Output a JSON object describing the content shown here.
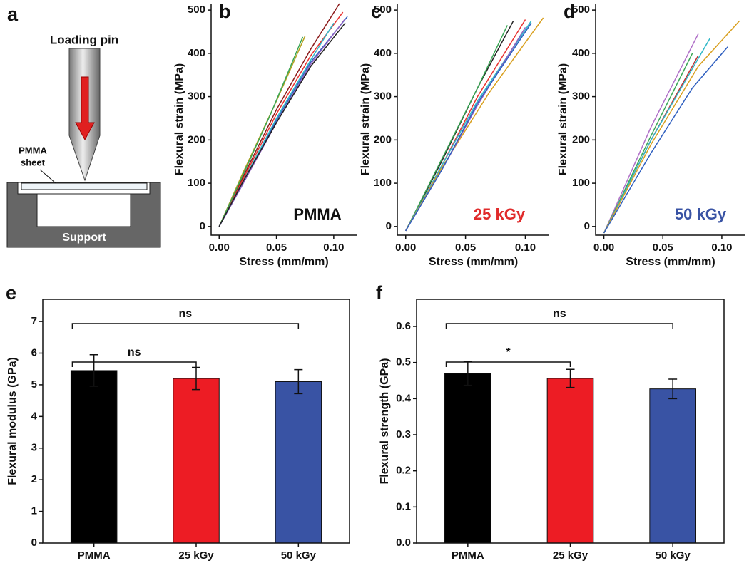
{
  "diagram": {
    "label": "a",
    "pin": "Loading pin",
    "sheet": [
      "PMMA",
      "sheet"
    ],
    "support": "Support"
  },
  "chart_data": [
    {
      "type": "line",
      "label": "b",
      "annotation": "PMMA",
      "annotation_color": "#111111",
      "x_label": "Stress (mm/mm)",
      "y_label": "Flexural strain (MPa)",
      "xlim": [
        -0.007,
        0.12
      ],
      "xticks": [
        {
          "value": 0,
          "label": "0.00"
        },
        0.05,
        {
          "value": 0.1,
          "label": "0.10"
        }
      ],
      "ylim": [
        -20,
        515
      ],
      "yticks": [
        0,
        100,
        200,
        300,
        400,
        500
      ],
      "series": [
        {
          "color": "#8b1a1a",
          "x": [
            0,
            0.02,
            0.05,
            0.08,
            0.105
          ],
          "values": [
            0,
            110,
            270,
            410,
            515
          ]
        },
        {
          "color": "#e8312f",
          "x": [
            0,
            0.02,
            0.05,
            0.08,
            0.108
          ],
          "values": [
            0,
            105,
            260,
            395,
            495
          ]
        },
        {
          "color": "#b5a020",
          "x": [
            0,
            0.02,
            0.05,
            0.075
          ],
          "values": [
            0,
            120,
            290,
            440
          ]
        },
        {
          "color": "#3aa655",
          "x": [
            0,
            0.02,
            0.045,
            0.073
          ],
          "values": [
            0,
            115,
            260,
            438
          ]
        },
        {
          "color": "#30b8c8",
          "x": [
            0,
            0.02,
            0.05,
            0.08,
            0.1
          ],
          "values": [
            0,
            100,
            250,
            385,
            470
          ]
        },
        {
          "color": "#3060c0",
          "x": [
            0,
            0.02,
            0.05,
            0.08,
            0.112
          ],
          "values": [
            0,
            95,
            245,
            380,
            485
          ]
        },
        {
          "color": "#9060c0",
          "x": [
            0,
            0.02,
            0.05,
            0.08,
            0.11
          ],
          "values": [
            0,
            95,
            240,
            375,
            480
          ]
        },
        {
          "color": "#222222",
          "x": [
            0,
            0.02,
            0.05,
            0.08,
            0.11
          ],
          "values": [
            0,
            100,
            240,
            370,
            470
          ]
        }
      ]
    },
    {
      "type": "line",
      "label": "c",
      "annotation": "25 kGy",
      "annotation_color": "#e02b2b",
      "x_label": "Stress (mm/mm)",
      "y_label": "Flexural strain (MPa)",
      "xlim": [
        -0.007,
        0.12
      ],
      "xticks": [
        {
          "value": 0,
          "label": "0.00"
        },
        0.05,
        {
          "value": 0.1,
          "label": "0.10"
        }
      ],
      "ylim": [
        -20,
        515
      ],
      "yticks": [
        0,
        100,
        200,
        300,
        400,
        500
      ],
      "series": [
        {
          "color": "#222222",
          "x": [
            0,
            0.03,
            0.06,
            0.09
          ],
          "values": [
            -10,
            150,
            320,
            475
          ]
        },
        {
          "color": "#3aa655",
          "x": [
            0,
            0.03,
            0.06,
            0.085
          ],
          "values": [
            -10,
            155,
            320,
            465
          ]
        },
        {
          "color": "#e8312f",
          "x": [
            0,
            0.03,
            0.06,
            0.1
          ],
          "values": [
            -10,
            140,
            300,
            478
          ]
        },
        {
          "color": "#30b8c8",
          "x": [
            0,
            0.03,
            0.06,
            0.105
          ],
          "values": [
            -10,
            140,
            290,
            475
          ]
        },
        {
          "color": "#d9a020",
          "x": [
            0,
            0.03,
            0.07,
            0.115
          ],
          "values": [
            -10,
            135,
            310,
            482
          ]
        },
        {
          "color": "#9060c0",
          "x": [
            0,
            0.03,
            0.06,
            0.1
          ],
          "values": [
            -10,
            130,
            280,
            460
          ]
        },
        {
          "color": "#3060c0",
          "x": [
            0,
            0.03,
            0.06,
            0.105
          ],
          "values": [
            -10,
            130,
            285,
            470
          ]
        }
      ]
    },
    {
      "type": "line",
      "label": "d",
      "annotation": "50 kGy",
      "annotation_color": "#3953a4",
      "x_label": "Stress (mm/mm)",
      "y_label": "Flexural strain (MPa)",
      "xlim": [
        -0.007,
        0.12
      ],
      "xticks": [
        {
          "value": 0,
          "label": "0.00"
        },
        0.05,
        {
          "value": 0.1,
          "label": "0.10"
        }
      ],
      "ylim": [
        -20,
        515
      ],
      "yticks": [
        0,
        100,
        200,
        300,
        400,
        500
      ],
      "series": [
        {
          "color": "#b070c8",
          "x": [
            0,
            0.04,
            0.08
          ],
          "values": [
            -15,
            230,
            445
          ]
        },
        {
          "color": "#3aa655",
          "x": [
            0,
            0.04,
            0.075
          ],
          "values": [
            -15,
            210,
            400
          ]
        },
        {
          "color": "#c03030",
          "x": [
            0,
            0.04,
            0.08
          ],
          "values": [
            -15,
            200,
            395
          ]
        },
        {
          "color": "#30b8c8",
          "x": [
            0,
            0.04,
            0.09
          ],
          "values": [
            -15,
            200,
            435
          ]
        },
        {
          "color": "#d9a020",
          "x": [
            0,
            0.04,
            0.08,
            0.115
          ],
          "values": [
            -15,
            190,
            370,
            475
          ]
        },
        {
          "color": "#3060c0",
          "x": [
            0,
            0.04,
            0.075,
            0.105
          ],
          "values": [
            -15,
            170,
            320,
            415
          ]
        }
      ]
    },
    {
      "type": "bar",
      "label": "e",
      "y_label": "Flexural modulus (GPa)",
      "categories": [
        "PMMA",
        "25 kGy",
        "50 kGy"
      ],
      "values": [
        5.45,
        5.2,
        5.1
      ],
      "errors": [
        0.5,
        0.35,
        0.38
      ],
      "colors": [
        "#000000",
        "#ed1c24",
        "#3953a4"
      ],
      "ylim": [
        0,
        7.7
      ],
      "yticks": [
        0,
        1,
        2,
        3,
        4,
        5,
        6,
        7
      ],
      "annotations": [
        "ns",
        "ns"
      ]
    },
    {
      "type": "bar",
      "label": "f",
      "y_label": "Flexural strength (GPa)",
      "categories": [
        "PMMA",
        "25 kGy",
        "50 kGy"
      ],
      "values": [
        0.47,
        0.456,
        0.427
      ],
      "errors": [
        0.033,
        0.025,
        0.027
      ],
      "colors": [
        "#000000",
        "#ed1c24",
        "#3953a4"
      ],
      "ylim": [
        0,
        0.675
      ],
      "yticks": [
        {
          "value": 0,
          "label": "0.0"
        },
        0.1,
        0.2,
        0.3,
        0.4,
        0.5,
        0.6
      ],
      "annotations": [
        "ns",
        "*"
      ]
    }
  ]
}
